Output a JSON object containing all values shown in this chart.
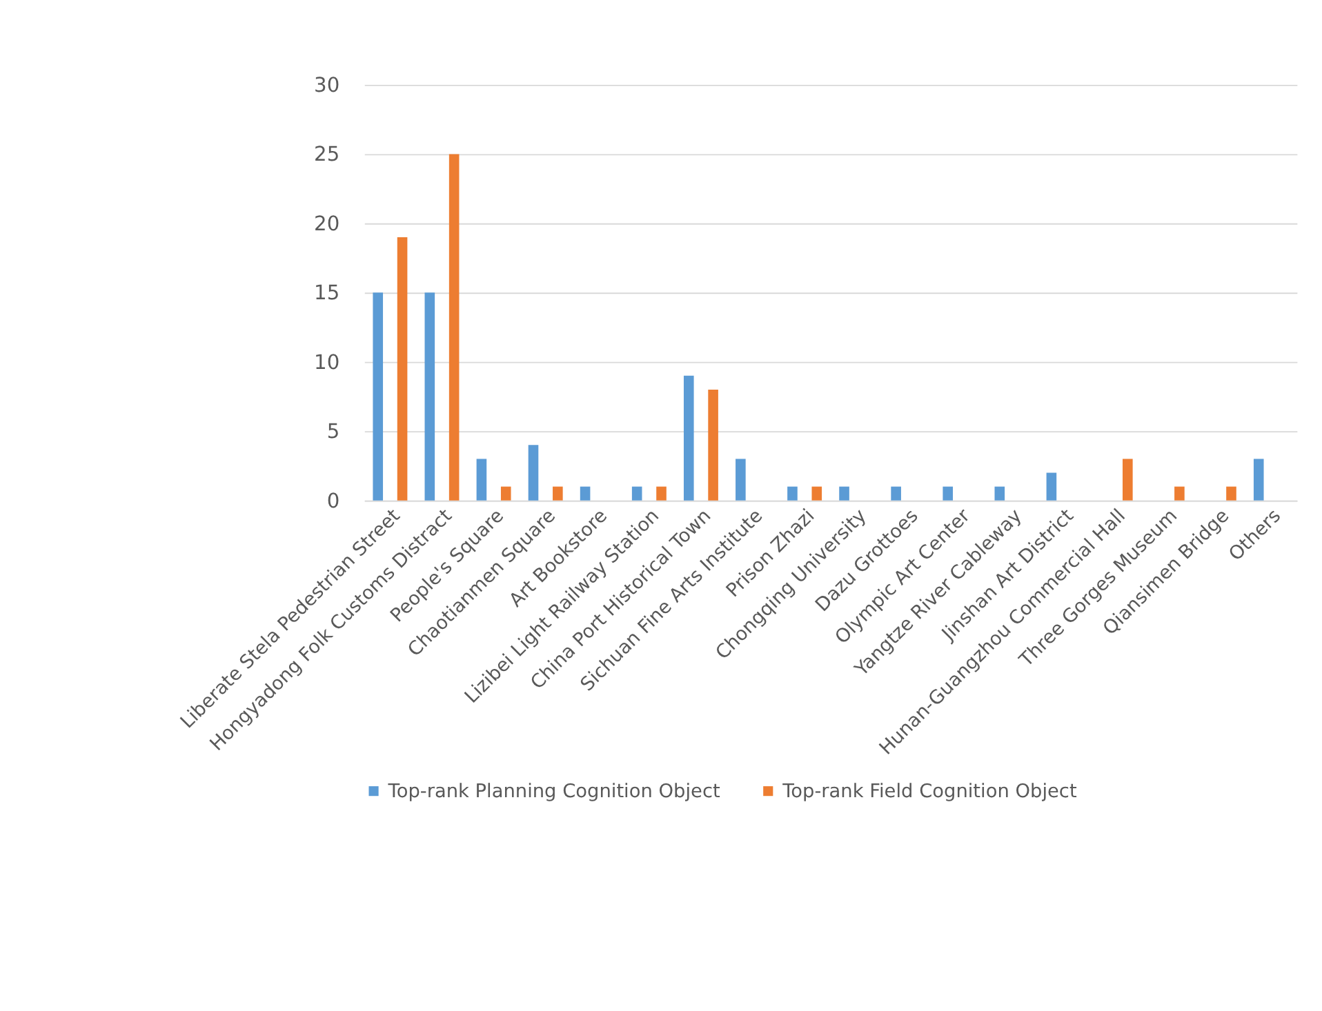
{
  "chart_data": {
    "type": "bar",
    "categories": [
      "Liberate Stela Pedestrian Street",
      "Hongyadong Folk Customs Distract",
      "People's Square",
      "Chaotianmen Square",
      "Art Bookstore",
      "Lizibei Light Railway Station",
      "China Port Historical Town",
      "Sichuan Fine Arts Institute",
      "Prison Zhazi",
      "Chongqing University",
      "Dazu Grottoes",
      "Olympic Art Center",
      "Yangtze River Cableway",
      "Jinshan Art District",
      "Hunan-Guangzhou Commercial Hall",
      "Three Gorges Museum",
      "Qiansimen Bridge",
      "Others"
    ],
    "series": [
      {
        "name": "Top-rank Planning Cognition Object",
        "color": "#5b9bd5",
        "values": [
          15,
          15,
          3,
          4,
          1,
          1,
          9,
          3,
          1,
          1,
          1,
          1,
          1,
          2,
          0,
          0,
          0,
          3
        ]
      },
      {
        "name": "Top-rank Field Cognition Object",
        "color": "#ed7d31",
        "values": [
          19,
          25,
          1,
          1,
          0,
          1,
          8,
          0,
          1,
          0,
          0,
          0,
          0,
          0,
          3,
          1,
          1,
          0
        ]
      }
    ],
    "ylim": [
      0,
      30
    ],
    "yticks": [
      0,
      5,
      10,
      15,
      20,
      25,
      30
    ],
    "grid": "y",
    "legend": "bottom"
  }
}
